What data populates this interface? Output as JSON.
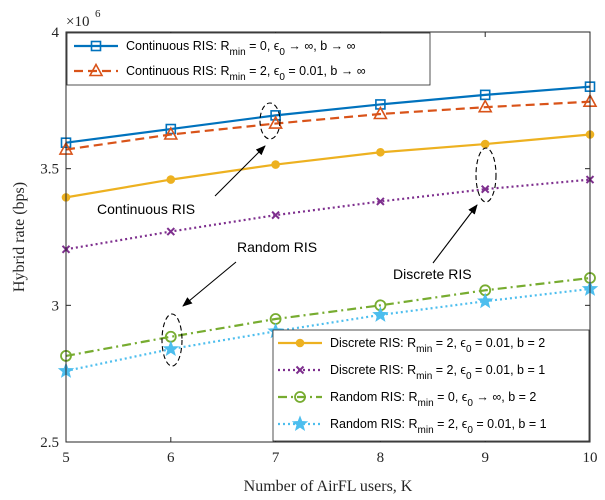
{
  "chart_data": {
    "type": "line",
    "xlabel": "Number of AirFL users, K",
    "ylabel": "Hybrid rate (bps)",
    "y_exponent": "×10",
    "y_exponent_power": "6",
    "x": [
      5,
      6,
      7,
      8,
      9,
      10
    ],
    "xlim": [
      5,
      10
    ],
    "ylim": [
      2.5,
      4.0
    ],
    "x_ticks": [
      5,
      6,
      7,
      8,
      9,
      10
    ],
    "y_ticks": [
      2.5,
      3,
      3.5,
      4
    ],
    "x_tick_labels": [
      "5",
      "6",
      "7",
      "8",
      "9",
      "10"
    ],
    "y_tick_labels": [
      "2.5",
      "3",
      "3.5",
      "4"
    ],
    "grid": false,
    "series": [
      {
        "name_main": "Continuous RIS: R",
        "name_sub": "min",
        "name_rest": " = 0, ϵ",
        "name_sub2": "0",
        "name_end": " → ∞, b → ∞",
        "values": [
          3.595,
          3.645,
          3.695,
          3.735,
          3.77,
          3.8
        ],
        "color": "#0072BD",
        "dash": "",
        "marker": "square",
        "legend": "top"
      },
      {
        "name_main": "Continuous RIS: R",
        "name_sub": "min",
        "name_rest": " = 2, ϵ",
        "name_sub2": "0",
        "name_end": " = 0.01, b → ∞",
        "values": [
          3.57,
          3.625,
          3.665,
          3.7,
          3.725,
          3.745
        ],
        "color": "#D95319",
        "dash": "9 5",
        "marker": "triangle",
        "legend": "top"
      },
      {
        "name_main": "Discrete RIS: R",
        "name_sub": "min",
        "name_rest": " = 2, ϵ",
        "name_sub2": "0",
        "name_end": " = 0.01, b = 2",
        "values": [
          3.395,
          3.46,
          3.515,
          3.56,
          3.59,
          3.625
        ],
        "color": "#EDB120",
        "dash": "",
        "marker": "dot",
        "legend": "bottom"
      },
      {
        "name_main": "Discrete RIS: R",
        "name_sub": "min",
        "name_rest": " = 2, ϵ",
        "name_sub2": "0",
        "name_end": " = 0.01, b = 1",
        "values": [
          3.205,
          3.27,
          3.33,
          3.38,
          3.425,
          3.46
        ],
        "color": "#7E2F8E",
        "dash": "2 3",
        "marker": "x",
        "legend": "bottom"
      },
      {
        "name_main": "Random RIS: R",
        "name_sub": "min",
        "name_rest": " = 0, ϵ",
        "name_sub2": "0",
        "name_end": " → ∞, b = 2",
        "values": [
          2.815,
          2.885,
          2.95,
          3.0,
          3.055,
          3.1
        ],
        "color": "#77AC30",
        "dash": "9 4 2 4",
        "marker": "circle",
        "legend": "bottom"
      },
      {
        "name_main": "Random RIS: R",
        "name_sub": "min",
        "name_rest": " = 2, ϵ",
        "name_sub2": "0",
        "name_end": " = 0.01, b = 1",
        "values": [
          2.76,
          2.84,
          2.905,
          2.965,
          3.015,
          3.06
        ],
        "color": "#4DBEEE",
        "dash": "2 3",
        "marker": "star",
        "legend": "bottom"
      }
    ],
    "annotations": [
      {
        "text": "Continuous RIS"
      },
      {
        "text": "Random RIS"
      },
      {
        "text": "Discrete RIS"
      }
    ],
    "legend_position": [
      "top-left",
      "bottom-right"
    ]
  }
}
